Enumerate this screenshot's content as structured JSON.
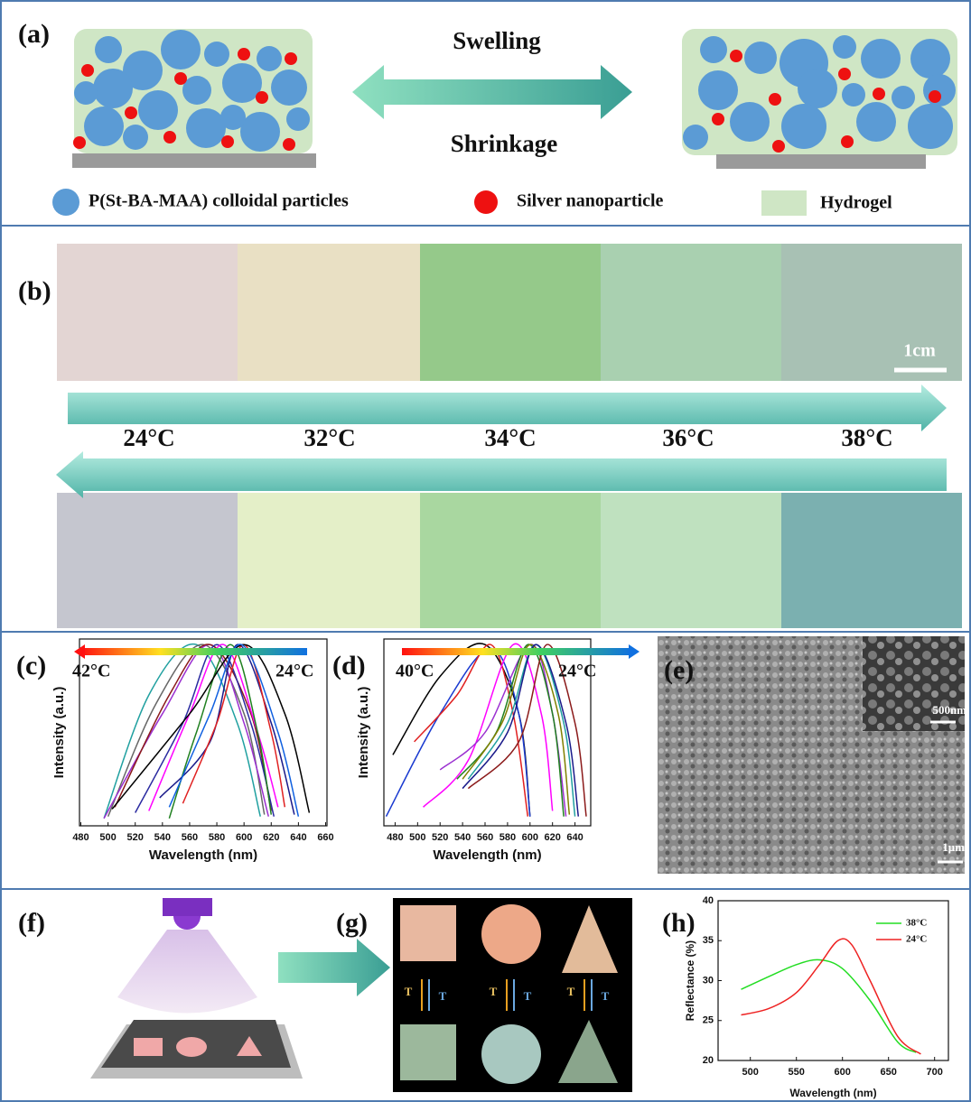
{
  "panel_a": {
    "label": "(a)",
    "swelling": "Swelling",
    "shrinkage": "Shrinkage",
    "legend": [
      "P(St-BA-MAA) colloidal particles",
      "Silver nanoparticle",
      "Hydrogel"
    ]
  },
  "panel_b": {
    "label": "(b)",
    "scale_bar": "1cm",
    "temperatures": [
      "24°C",
      "32°C",
      "34°C",
      "36°C",
      "38°C"
    ]
  },
  "panel_e": {
    "label": "(e)",
    "inset_scale": "500nm",
    "main_scale": "1μm"
  },
  "panel_f": {
    "label": "(f)"
  },
  "panel_g": {
    "label": "(g)",
    "symbol": "T"
  },
  "chart_data": [
    {
      "type": "line",
      "label": "(c)",
      "x_label": "Wavelength (nm)",
      "y_label": "Intensity (a.u.)",
      "gradient_labels": [
        "42°C",
        "24°C"
      ],
      "xlim": [
        479,
        661
      ],
      "xticks": [
        480,
        500,
        520,
        540,
        560,
        580,
        600,
        620,
        640,
        660
      ],
      "ylim": [
        0,
        1
      ],
      "series": [
        {
          "color": "#20a0a0",
          "x": [
            497,
            530,
            565,
            595,
            612
          ],
          "values": [
            0.04,
            0.7,
            0.97,
            0.55,
            0.05
          ]
        },
        {
          "color": "#666666",
          "x": [
            500,
            535,
            570,
            600,
            615
          ],
          "values": [
            0.05,
            0.65,
            0.97,
            0.6,
            0.06
          ]
        },
        {
          "color": "#9b30d0",
          "x": [
            497,
            540,
            575,
            600,
            618
          ],
          "values": [
            0.04,
            0.6,
            0.97,
            0.55,
            0.05
          ]
        },
        {
          "color": "#8b1a1a",
          "x": [
            505,
            545,
            575,
            605,
            620
          ],
          "values": [
            0.1,
            0.7,
            0.97,
            0.6,
            0.08
          ]
        },
        {
          "color": "#2a2aa0",
          "x": [
            520,
            555,
            580,
            605,
            622
          ],
          "values": [
            0.07,
            0.55,
            0.97,
            0.55,
            0.05
          ]
        },
        {
          "color": "#ff00ff",
          "x": [
            530,
            560,
            585,
            610,
            625
          ],
          "values": [
            0.08,
            0.6,
            0.97,
            0.5,
            0.1
          ]
        },
        {
          "color": "#208020",
          "x": [
            545,
            565,
            590,
            610,
            620
          ],
          "values": [
            0.04,
            0.5,
            0.97,
            0.5,
            0.06
          ]
        },
        {
          "color": "#1a1a8a",
          "x": [
            538,
            575,
            595,
            620,
            637
          ],
          "values": [
            0.15,
            0.45,
            0.97,
            0.55,
            0.06
          ]
        },
        {
          "color": "#e02020",
          "x": [
            555,
            580,
            600,
            620,
            630
          ],
          "values": [
            0.12,
            0.55,
            0.97,
            0.5,
            0.1
          ]
        },
        {
          "color": "#000000",
          "x": [
            503,
            560,
            600,
            630,
            648
          ],
          "values": [
            0.09,
            0.6,
            0.97,
            0.6,
            0.07
          ]
        },
        {
          "color": "#1060e0",
          "x": [
            545,
            575,
            598,
            625,
            640
          ],
          "values": [
            0.1,
            0.6,
            0.97,
            0.5,
            0.05
          ]
        }
      ]
    },
    {
      "type": "line",
      "label": "(d)",
      "x_label": "Wavelength (nm)",
      "y_label": "Intensity (a.u.)",
      "gradient_labels": [
        "40°C",
        "24°C"
      ],
      "xlim": [
        470,
        654
      ],
      "xticks": [
        480,
        500,
        520,
        540,
        560,
        580,
        600,
        620,
        640
      ],
      "ylim": [
        0,
        1
      ],
      "series": [
        {
          "color": "#000000",
          "x": [
            478,
            520,
            560,
            590,
            600
          ],
          "values": [
            0.38,
            0.8,
            0.97,
            0.6,
            0.05
          ]
        },
        {
          "color": "#1a3ad0",
          "x": [
            472,
            520,
            565,
            590,
            600
          ],
          "values": [
            0.05,
            0.6,
            0.95,
            0.6,
            0.05
          ]
        },
        {
          "color": "#e02020",
          "x": [
            497,
            535,
            565,
            585,
            598
          ],
          "values": [
            0.45,
            0.7,
            0.97,
            0.6,
            0.05
          ]
        },
        {
          "color": "#ff00ff",
          "x": [
            505,
            545,
            585,
            610,
            620
          ],
          "values": [
            0.1,
            0.35,
            0.97,
            0.6,
            0.08
          ]
        },
        {
          "color": "#9b30d0",
          "x": [
            520,
            560,
            600,
            620,
            632
          ],
          "values": [
            0.3,
            0.5,
            0.97,
            0.6,
            0.05
          ]
        },
        {
          "color": "#208020",
          "x": [
            535,
            570,
            598,
            620,
            630
          ],
          "values": [
            0.25,
            0.5,
            0.97,
            0.6,
            0.05
          ]
        },
        {
          "color": "#808000",
          "x": [
            540,
            575,
            600,
            625,
            635
          ],
          "values": [
            0.25,
            0.55,
            0.97,
            0.6,
            0.06
          ]
        },
        {
          "color": "#20a0a0",
          "x": [
            545,
            580,
            605,
            630,
            640
          ],
          "values": [
            0.25,
            0.55,
            0.97,
            0.55,
            0.05
          ]
        },
        {
          "color": "#1a1a8a",
          "x": [
            540,
            580,
            605,
            632,
            643
          ],
          "values": [
            0.2,
            0.5,
            0.97,
            0.55,
            0.05
          ]
        },
        {
          "color": "#8b1a1a",
          "x": [
            545,
            590,
            615,
            640,
            650
          ],
          "values": [
            0.2,
            0.45,
            0.97,
            0.55,
            0.05
          ]
        }
      ]
    },
    {
      "type": "line",
      "label": "(h)",
      "x_label": "Wavelength (nm)",
      "y_label": "Reflectance (%)",
      "xlim": [
        465,
        715
      ],
      "xticks": [
        500,
        550,
        600,
        650,
        700
      ],
      "ylim": [
        20,
        40
      ],
      "yticks": [
        20,
        25,
        30,
        35,
        40
      ],
      "series": [
        {
          "name": "38°C",
          "color": "#22dd22",
          "x": [
            490,
            520,
            550,
            575,
            600,
            630,
            660,
            680
          ],
          "values": [
            28.9,
            30.5,
            32,
            32.6,
            31.5,
            27.5,
            22.3,
            21
          ]
        },
        {
          "name": "24°C",
          "color": "#ee2222",
          "x": [
            490,
            520,
            550,
            575,
            595,
            610,
            630,
            660,
            685
          ],
          "values": [
            25.7,
            26.5,
            28.5,
            32,
            35,
            34.5,
            30,
            23,
            20.8
          ]
        }
      ]
    }
  ]
}
